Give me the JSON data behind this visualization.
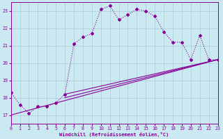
{
  "xlabel": "Windchill (Refroidissement éolien,°C)",
  "bg_color": "#cbe9f0",
  "grid_color": "#aac8d8",
  "line_color": "#880099",
  "xlim": [
    0,
    23
  ],
  "ylim": [
    16.5,
    23.5
  ],
  "yticks": [
    17,
    18,
    19,
    20,
    21,
    22,
    23
  ],
  "xticks": [
    0,
    1,
    2,
    3,
    4,
    5,
    6,
    7,
    8,
    9,
    10,
    11,
    12,
    13,
    14,
    15,
    16,
    17,
    18,
    19,
    20,
    21,
    22,
    23
  ],
  "series1_x": [
    0,
    1,
    2,
    3,
    4,
    5,
    6,
    7,
    8,
    9,
    10,
    11,
    12,
    13,
    14,
    15,
    16,
    17,
    18,
    19,
    20,
    21,
    22,
    23
  ],
  "series1_y": [
    18.3,
    17.6,
    17.1,
    17.5,
    17.5,
    17.7,
    18.2,
    21.1,
    21.5,
    21.7,
    23.1,
    23.3,
    22.5,
    22.8,
    23.1,
    23.0,
    22.7,
    21.8,
    21.2,
    21.2,
    20.2,
    21.6,
    20.2,
    20.2
  ],
  "line1_x": [
    0,
    23
  ],
  "line1_y": [
    17.0,
    20.2
  ],
  "line2_x": [
    6,
    23
  ],
  "line2_y": [
    18.2,
    20.2
  ],
  "line3_x": [
    6,
    23
  ],
  "line3_y": [
    18.0,
    20.2
  ]
}
